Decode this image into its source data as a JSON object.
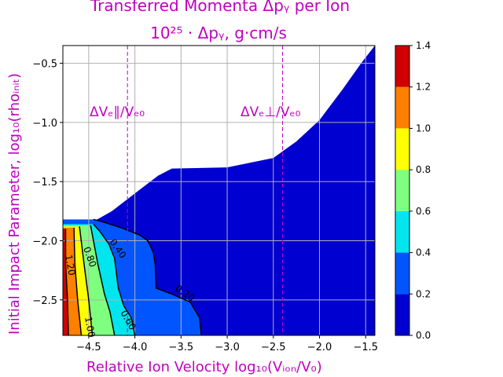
{
  "chart_data": {
    "type": "contour",
    "title": "Transferred Momenta Δpᵧ per Ion",
    "subtitle": "10²⁵ · Δpᵧ, g·cm/s",
    "xlabel": "Relative Ion Velocity  log₁₀(Vᵢₒₙ/V₀)",
    "ylabel": "Initial Impact Parameter, log₁₀(rhoᵢₙᵢₜ)",
    "xlim": [
      -4.78,
      -1.4
    ],
    "ylim": [
      -2.8,
      -0.35
    ],
    "xticks": [
      -4.5,
      -4.0,
      -3.5,
      -3.0,
      -2.5,
      -2.0,
      -1.5
    ],
    "xtick_labels": [
      "−4.5",
      "−4.0",
      "−3.5",
      "−3.0",
      "−2.5",
      "−2.0",
      "−1.5"
    ],
    "yticks": [
      -2.5,
      -2.0,
      -1.5,
      -1.0,
      -0.5
    ],
    "ytick_labels": [
      "−2.5",
      "−2.0",
      "−1.5",
      "−1.0",
      "−0.5"
    ],
    "grid": true,
    "colorbar": {
      "levels": [
        0.0,
        0.2,
        0.4,
        0.6,
        0.8,
        1.0,
        1.2,
        1.4
      ],
      "tick_labels": [
        "0.0",
        "0.2",
        "0.4",
        "0.6",
        "0.8",
        "1.0",
        "1.2",
        "1.4"
      ],
      "colors": [
        "#0000d0",
        "#0055ff",
        "#00e5ee",
        "#7fff7f",
        "#ffff00",
        "#ff7f00",
        "#d00000"
      ]
    },
    "vertical_lines": [
      {
        "x": -4.08,
        "label": "ΔVₑ∥/Vₑ₀"
      },
      {
        "x": -2.4,
        "label": "ΔVₑ⊥/Vₑ₀"
      }
    ],
    "contour_labels": [
      "1.20",
      "0.80",
      "0.40",
      "0.20",
      "0.60",
      "1.00"
    ],
    "upper_boundary": [
      [
        -4.78,
        -1.91
      ],
      [
        -4.5,
        -1.86
      ],
      [
        -4.25,
        -1.75
      ],
      [
        -4.0,
        -1.6
      ],
      [
        -3.75,
        -1.45
      ],
      [
        -3.6,
        -1.39
      ],
      [
        -3.0,
        -1.38
      ],
      [
        -2.5,
        -1.3
      ],
      [
        -2.25,
        -1.16
      ],
      [
        -2.0,
        -0.98
      ],
      [
        -1.75,
        -0.72
      ],
      [
        -1.55,
        -0.5
      ],
      [
        -1.4,
        -0.35
      ]
    ],
    "contours": [
      {
        "level": 1.2,
        "points": [
          [
            -4.72,
            -2.8
          ],
          [
            -4.73,
            -2.5
          ],
          [
            -4.75,
            -2.2
          ],
          [
            -4.75,
            -1.9
          ]
        ]
      },
      {
        "level": 1.0,
        "points": [
          [
            -4.58,
            -2.8
          ],
          [
            -4.62,
            -2.5
          ],
          [
            -4.65,
            -2.2
          ],
          [
            -4.66,
            -1.89
          ]
        ]
      },
      {
        "level": 0.8,
        "points": [
          [
            -4.46,
            -2.8
          ],
          [
            -4.5,
            -2.5
          ],
          [
            -4.55,
            -2.2
          ],
          [
            -4.6,
            -1.88
          ]
        ]
      },
      {
        "level": 0.6,
        "points": [
          [
            -4.22,
            -2.8
          ],
          [
            -4.27,
            -2.6
          ],
          [
            -4.33,
            -2.45
          ],
          [
            -4.4,
            -2.2
          ],
          [
            -4.48,
            -1.87
          ]
        ]
      },
      {
        "level": 0.4,
        "points": [
          [
            -4.0,
            -2.8
          ],
          [
            -4.04,
            -2.65
          ],
          [
            -4.12,
            -2.55
          ],
          [
            -4.18,
            -2.4
          ],
          [
            -4.22,
            -2.15
          ],
          [
            -4.28,
            -2.03
          ],
          [
            -4.38,
            -1.92
          ],
          [
            -4.45,
            -1.86
          ]
        ]
      },
      {
        "level": 0.2,
        "points": [
          [
            -3.28,
            -2.8
          ],
          [
            -3.3,
            -2.65
          ],
          [
            -3.4,
            -2.52
          ],
          [
            -3.6,
            -2.45
          ],
          [
            -3.77,
            -2.4
          ],
          [
            -3.78,
            -2.2
          ],
          [
            -3.8,
            -2.1
          ],
          [
            -3.86,
            -2.0
          ],
          [
            -3.95,
            -1.95
          ],
          [
            -4.15,
            -1.89
          ],
          [
            -4.35,
            -1.84
          ],
          [
            -4.45,
            -1.82
          ]
        ]
      }
    ]
  }
}
